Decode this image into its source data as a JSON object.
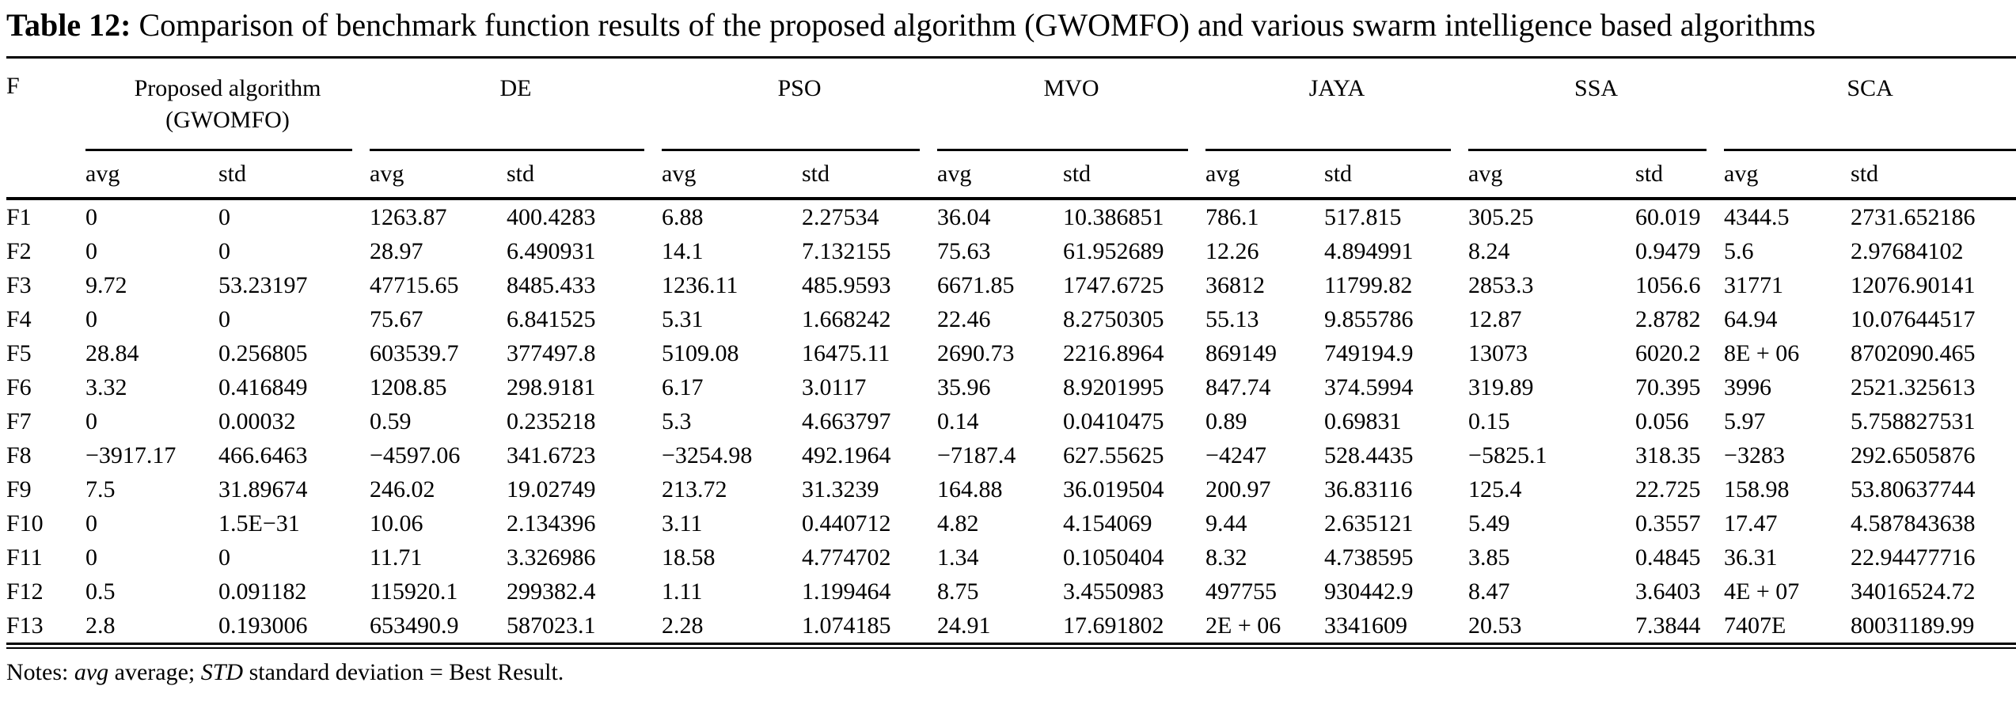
{
  "title": {
    "label": "Table 12:",
    "text": "Comparison of benchmark function results of the proposed algorithm (GWOMFO) and various swarm intelligence based algorithms"
  },
  "table": {
    "f_header": "F",
    "groups": [
      {
        "id": "gwomfo",
        "lines": [
          "Proposed algorithm",
          "(GWOMFO)"
        ]
      },
      {
        "id": "de",
        "lines": [
          "DE"
        ]
      },
      {
        "id": "pso",
        "lines": [
          "PSO"
        ]
      },
      {
        "id": "mvo",
        "lines": [
          "MVO"
        ]
      },
      {
        "id": "jaya",
        "lines": [
          "JAYA"
        ]
      },
      {
        "id": "ssa",
        "lines": [
          "SSA"
        ]
      },
      {
        "id": "sca",
        "lines": [
          "SCA"
        ]
      }
    ],
    "subheaders": [
      "avg",
      "std"
    ],
    "rows": [
      {
        "f": "F1",
        "values": [
          "0",
          "0",
          "1263.87",
          "400.4283",
          "6.88",
          "2.27534",
          "36.04",
          "10.386851",
          "786.1",
          "517.815",
          "305.25",
          "60.019",
          "4344.5",
          "2731.652186"
        ]
      },
      {
        "f": "F2",
        "values": [
          "0",
          "0",
          "28.97",
          "6.490931",
          "14.1",
          "7.132155",
          "75.63",
          "61.952689",
          "12.26",
          "4.894991",
          "8.24",
          "0.9479",
          "5.6",
          "2.97684102"
        ]
      },
      {
        "f": "F3",
        "values": [
          "9.72",
          "53.23197",
          "47715.65",
          "8485.433",
          "1236.11",
          "485.9593",
          "6671.85",
          "1747.6725",
          "36812",
          "11799.82",
          "2853.3",
          "1056.6",
          "31771",
          "12076.90141"
        ]
      },
      {
        "f": "F4",
        "values": [
          "0",
          "0",
          "75.67",
          "6.841525",
          "5.31",
          "1.668242",
          "22.46",
          "8.2750305",
          "55.13",
          "9.855786",
          "12.87",
          "2.8782",
          "64.94",
          "10.07644517"
        ]
      },
      {
        "f": "F5",
        "values": [
          "28.84",
          "0.256805",
          "603539.7",
          "377497.8",
          "5109.08",
          "16475.11",
          "2690.73",
          "2216.8964",
          "869149",
          "749194.9",
          "13073",
          "6020.2",
          "8E + 06",
          "8702090.465"
        ]
      },
      {
        "f": "F6",
        "values": [
          "3.32",
          "0.416849",
          "1208.85",
          "298.9181",
          "6.17",
          "3.0117",
          "35.96",
          "8.9201995",
          "847.74",
          "374.5994",
          "319.89",
          "70.395",
          "3996",
          "2521.325613"
        ]
      },
      {
        "f": "F7",
        "values": [
          "0",
          "0.00032",
          "0.59",
          "0.235218",
          "5.3",
          "4.663797",
          "0.14",
          "0.0410475",
          "0.89",
          "0.69831",
          "0.15",
          "0.056",
          "5.97",
          "5.758827531"
        ]
      },
      {
        "f": "F8",
        "values": [
          "−3917.17",
          "466.6463",
          "−4597.06",
          "341.6723",
          "−3254.98",
          "492.1964",
          "−7187.4",
          "627.55625",
          "−4247",
          "528.4435",
          "−5825.1",
          "318.35",
          "−3283",
          "292.6505876"
        ]
      },
      {
        "f": "F9",
        "values": [
          "7.5",
          "31.89674",
          "246.02",
          "19.02749",
          "213.72",
          "31.3239",
          "164.88",
          "36.019504",
          "200.97",
          "36.83116",
          "125.4",
          "22.725",
          "158.98",
          "53.80637744"
        ]
      },
      {
        "f": "F10",
        "values": [
          "0",
          "1.5E−31",
          "10.06",
          "2.134396",
          "3.11",
          "0.440712",
          "4.82",
          "4.154069",
          "9.44",
          "2.635121",
          "5.49",
          "0.3557",
          "17.47",
          "4.587843638"
        ]
      },
      {
        "f": "F11",
        "values": [
          "0",
          "0",
          "11.71",
          "3.326986",
          "18.58",
          "4.774702",
          "1.34",
          "0.1050404",
          "8.32",
          "4.738595",
          "3.85",
          "0.4845",
          "36.31",
          "22.94477716"
        ]
      },
      {
        "f": "F12",
        "values": [
          "0.5",
          "0.091182",
          "115920.1",
          "299382.4",
          "1.11",
          "1.199464",
          "8.75",
          "3.4550983",
          "497755",
          "930442.9",
          "8.47",
          "3.6403",
          "4E + 07",
          "34016524.72"
        ]
      },
      {
        "f": "F13",
        "values": [
          "2.8",
          "0.193006",
          "653490.9",
          "587023.1",
          "2.28",
          "1.074185",
          "24.91",
          "17.691802",
          "2E + 06",
          "3341609",
          "20.53",
          "7.3844",
          "7407E",
          "80031189.99"
        ]
      }
    ]
  },
  "notes": {
    "prefix": "Notes:",
    "avg_term": "avg",
    "avg_def": "average;",
    "std_term": "STD",
    "std_def": "standard deviation = Best Result."
  }
}
